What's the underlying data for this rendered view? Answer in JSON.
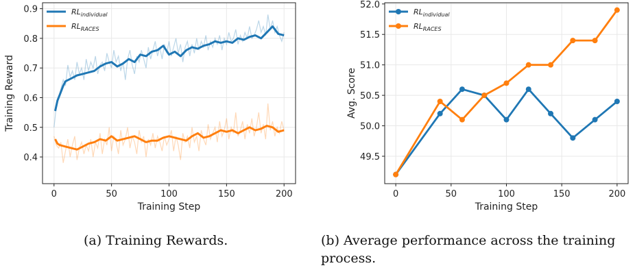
{
  "colors": {
    "individual": "#1f77b4",
    "races": "#ff7f0e",
    "grid": "#e8e8e8"
  },
  "chart_data": [
    {
      "type": "line",
      "xlabel": "Training Step",
      "ylabel": "Training Reward",
      "xlim": [
        -10,
        210
      ],
      "ylim": [
        0.31,
        0.92
      ],
      "xticks": [
        "0",
        "50",
        "100",
        "150",
        "200"
      ],
      "yticks": [
        "0.4",
        "0.5",
        "0.6",
        "0.7",
        "0.8",
        "0.9"
      ],
      "grid": true,
      "legend": "top-left",
      "series": [
        {
          "name": "individual",
          "legend_base": "RL",
          "legend_sub": "individual",
          "smoothed_x": [
            1,
            3,
            5,
            8,
            10,
            15,
            20,
            25,
            30,
            35,
            40,
            45,
            50,
            55,
            60,
            65,
            70,
            75,
            80,
            85,
            90,
            95,
            100,
            105,
            110,
            115,
            120,
            125,
            130,
            135,
            140,
            145,
            150,
            155,
            160,
            165,
            170,
            175,
            180,
            185,
            190,
            195,
            200
          ],
          "smoothed_y": [
            0.555,
            0.59,
            0.61,
            0.64,
            0.655,
            0.665,
            0.675,
            0.68,
            0.685,
            0.69,
            0.705,
            0.715,
            0.72,
            0.705,
            0.715,
            0.73,
            0.72,
            0.745,
            0.74,
            0.755,
            0.76,
            0.775,
            0.745,
            0.755,
            0.74,
            0.76,
            0.77,
            0.765,
            0.775,
            0.78,
            0.79,
            0.785,
            0.79,
            0.785,
            0.8,
            0.795,
            0.805,
            0.81,
            0.8,
            0.82,
            0.84,
            0.815,
            0.81
          ],
          "raw_y": [
            0.5,
            0.57,
            0.6,
            0.63,
            0.66,
            0.64,
            0.71,
            0.67,
            0.69,
            0.66,
            0.72,
            0.68,
            0.7,
            0.66,
            0.73,
            0.69,
            0.72,
            0.7,
            0.74,
            0.68,
            0.71,
            0.72,
            0.69,
            0.75,
            0.72,
            0.7,
            0.76,
            0.72,
            0.74,
            0.69,
            0.72,
            0.66,
            0.73,
            0.76,
            0.71,
            0.68,
            0.74,
            0.72,
            0.76,
            0.73,
            0.7,
            0.77,
            0.73,
            0.76,
            0.79,
            0.74,
            0.77,
            0.73,
            0.78,
            0.75,
            0.79,
            0.74,
            0.77,
            0.8,
            0.75,
            0.78,
            0.72,
            0.77,
            0.79,
            0.74,
            0.78,
            0.75,
            0.8,
            0.76,
            0.79,
            0.77,
            0.81,
            0.76,
            0.79,
            0.77,
            0.8,
            0.78,
            0.81,
            0.76,
            0.8,
            0.78,
            0.82,
            0.79,
            0.8,
            0.83,
            0.78,
            0.81,
            0.79,
            0.82,
            0.8,
            0.84,
            0.8,
            0.81,
            0.83,
            0.86,
            0.82,
            0.84,
            0.81,
            0.88,
            0.83,
            0.86,
            0.82,
            0.84,
            0.81,
            0.79,
            0.82
          ]
        },
        {
          "name": "races",
          "legend_base": "RL",
          "legend_sub": "RACES",
          "smoothed_x": [
            1,
            3,
            5,
            10,
            15,
            20,
            25,
            30,
            35,
            40,
            45,
            50,
            55,
            60,
            65,
            70,
            75,
            80,
            85,
            90,
            95,
            100,
            105,
            110,
            115,
            120,
            125,
            130,
            135,
            140,
            145,
            150,
            155,
            160,
            165,
            170,
            175,
            180,
            185,
            190,
            195,
            200
          ],
          "smoothed_y": [
            0.46,
            0.445,
            0.44,
            0.435,
            0.43,
            0.425,
            0.435,
            0.445,
            0.45,
            0.46,
            0.455,
            0.47,
            0.455,
            0.46,
            0.465,
            0.47,
            0.46,
            0.45,
            0.455,
            0.455,
            0.465,
            0.47,
            0.465,
            0.46,
            0.455,
            0.47,
            0.48,
            0.465,
            0.47,
            0.48,
            0.49,
            0.485,
            0.49,
            0.48,
            0.49,
            0.5,
            0.49,
            0.495,
            0.505,
            0.5,
            0.485,
            0.49
          ],
          "raw_y": [
            0.47,
            0.44,
            0.43,
            0.45,
            0.38,
            0.42,
            0.46,
            0.4,
            0.44,
            0.47,
            0.39,
            0.43,
            0.45,
            0.41,
            0.44,
            0.42,
            0.46,
            0.4,
            0.45,
            0.43,
            0.48,
            0.41,
            0.46,
            0.44,
            0.5,
            0.42,
            0.47,
            0.45,
            0.41,
            0.49,
            0.44,
            0.46,
            0.5,
            0.43,
            0.47,
            0.45,
            0.41,
            0.49,
            0.45,
            0.47,
            0.4,
            0.46,
            0.44,
            0.48,
            0.43,
            0.47,
            0.45,
            0.42,
            0.47,
            0.44,
            0.46,
            0.49,
            0.42,
            0.47,
            0.44,
            0.39,
            0.48,
            0.45,
            0.47,
            0.43,
            0.5,
            0.45,
            0.47,
            0.42,
            0.49,
            0.46,
            0.44,
            0.51,
            0.46,
            0.48,
            0.5,
            0.45,
            0.52,
            0.47,
            0.49,
            0.53,
            0.46,
            0.5,
            0.48,
            0.55,
            0.47,
            0.49,
            0.52,
            0.46,
            0.51,
            0.48,
            0.53,
            0.47,
            0.5,
            0.55,
            0.48,
            0.51,
            0.46,
            0.58,
            0.49,
            0.52,
            0.47,
            0.5,
            0.48,
            0.52,
            0.49
          ]
        }
      ]
    },
    {
      "type": "line",
      "xlabel": "Training Step",
      "ylabel": "Avg. Score",
      "xlim": [
        -10,
        210
      ],
      "ylim": [
        49.05,
        52.02
      ],
      "xticks": [
        "0",
        "50",
        "100",
        "150",
        "200"
      ],
      "yticks": [
        "49.5",
        "50.0",
        "50.5",
        "51.0",
        "51.5",
        "52.0"
      ],
      "grid": true,
      "legend": "top-left",
      "series": [
        {
          "name": "individual",
          "legend_base": "RL",
          "legend_sub": "individual",
          "x": [
            0,
            40,
            60,
            80,
            100,
            120,
            140,
            160,
            180,
            200
          ],
          "y": [
            49.2,
            50.2,
            50.6,
            50.5,
            50.1,
            50.6,
            50.2,
            49.8,
            50.1,
            50.4
          ]
        },
        {
          "name": "races",
          "legend_base": "RL",
          "legend_sub": "RACES",
          "x": [
            0,
            40,
            60,
            80,
            100,
            120,
            140,
            160,
            180,
            200
          ],
          "y": [
            49.2,
            50.4,
            50.1,
            50.5,
            50.7,
            51.0,
            51.0,
            51.4,
            51.4,
            51.9
          ]
        }
      ]
    }
  ],
  "captions": {
    "a": "(a) Training Rewards.",
    "b_line1": "(b) Average performance across the training",
    "b_line2": "process."
  }
}
